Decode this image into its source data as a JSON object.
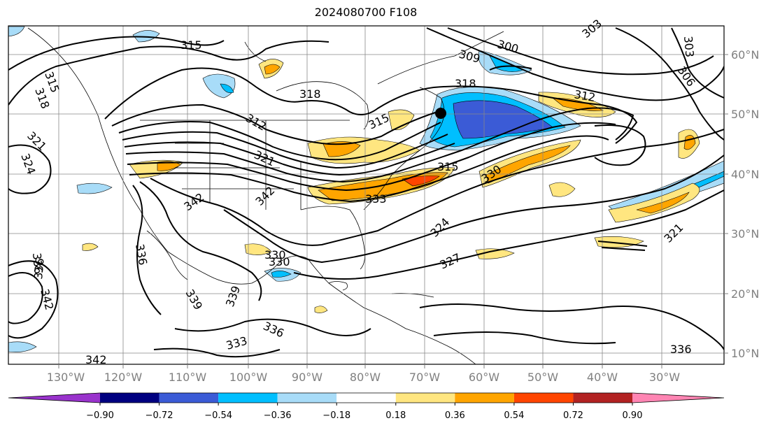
{
  "map": {
    "title": "2024080700 F108",
    "lon_labels": [
      "130°W",
      "120°W",
      "110°W",
      "100°W",
      "90°W",
      "80°W",
      "70°W",
      "60°W",
      "50°W",
      "40°W",
      "30°W"
    ],
    "lat_labels": [
      "60°N",
      "50°N",
      "40°N",
      "30°N",
      "20°N",
      "10°N"
    ],
    "contour_labels": [
      "315",
      "315",
      "318",
      "321",
      "324",
      "318",
      "315",
      "312",
      "321",
      "342",
      "342",
      "339",
      "336",
      "330",
      "330",
      "336",
      "336",
      "333",
      "330",
      "327",
      "324",
      "321",
      "318",
      "315",
      "309",
      "300",
      "303",
      "306",
      "312",
      "303",
      "333",
      "342",
      "339",
      "336",
      "336",
      "342"
    ],
    "marker": "black-dot"
  },
  "colorbar": {
    "ticks": [
      "−0.90",
      "−0.72",
      "−0.54",
      "−0.36",
      "−0.18",
      "0.18",
      "0.36",
      "0.54",
      "0.72",
      "0.90"
    ],
    "colors": [
      "#9933cc",
      "#000080",
      "#3b5bd6",
      "#00bfff",
      "#a8dcf8",
      "#ffffff",
      "#ffe680",
      "#ffa500",
      "#ff4500",
      "#b22222",
      "#ff85b3"
    ]
  }
}
